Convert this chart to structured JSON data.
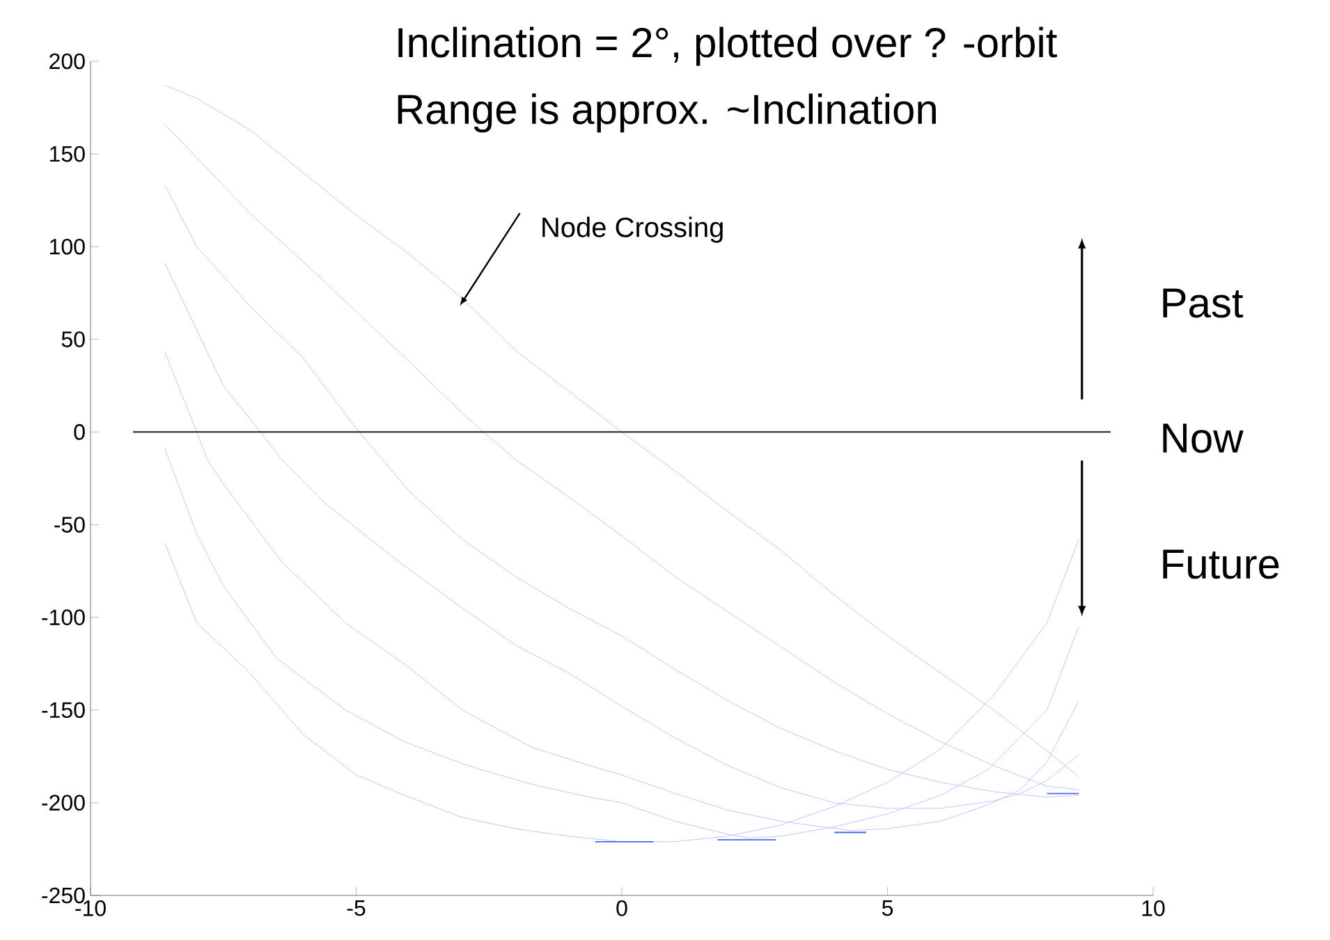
{
  "chart_data": {
    "type": "line",
    "title": "Inclination = 2°, plotted over ? -orbit",
    "subtitle": "Range is approx. ~Inclination",
    "xlim": [
      -10,
      10
    ],
    "xticks": [
      -10,
      -5,
      0,
      5,
      10
    ],
    "ylim": [
      -250,
      200
    ],
    "yticks": [
      -250,
      -200,
      -150,
      -100,
      -50,
      0,
      50,
      100,
      150,
      200
    ],
    "grid": false,
    "marker": "none",
    "line_style": "solid",
    "series": [
      {
        "color": "#b4c0ff",
        "x": [
          -8.6,
          -8,
          -7,
          -6,
          -5,
          -4,
          -3,
          -2,
          -1,
          0,
          1,
          2,
          3,
          4,
          5,
          6,
          7,
          8,
          8.6
        ],
        "values": [
          187,
          180,
          163,
          140,
          117,
          96,
          72,
          44,
          22,
          0,
          -21,
          -43,
          -64,
          -88,
          -110,
          -130,
          -150,
          -172,
          -186
        ]
      },
      {
        "color": "#b4c0ff",
        "x": [
          -8.6,
          -8,
          -7,
          -6,
          -5,
          -4,
          -3,
          -2,
          -1,
          0,
          1,
          2,
          3,
          4,
          5,
          6,
          7,
          8,
          8.6
        ],
        "values": [
          166,
          148,
          118,
          92,
          65,
          38,
          10,
          -15,
          -35,
          -56,
          -78,
          -97,
          -116,
          -135,
          -152,
          -167,
          -180,
          -191,
          -193
        ]
      },
      {
        "color": "#b4c0ff",
        "x": [
          -8.6,
          -8,
          -7,
          -6,
          -5,
          -4,
          -3,
          -2,
          -1,
          0,
          1,
          2,
          3,
          4,
          5,
          6,
          7,
          8,
          8.6
        ],
        "values": [
          133,
          100,
          68,
          40,
          2,
          -32,
          -58,
          -78,
          -95,
          -110,
          -128,
          -145,
          -160,
          -172,
          -182,
          -189,
          -194,
          -197,
          -196
        ]
      },
      {
        "color": "#b4c0ff",
        "x": [
          -8.6,
          -8,
          -7.5,
          -6.8,
          -6.4,
          -5.6,
          -4.2,
          -3,
          -2,
          -1,
          0,
          1,
          2,
          3,
          4,
          5,
          6,
          7,
          7.5,
          8,
          8.6
        ],
        "values": [
          91,
          55,
          25,
          0,
          -15,
          -38,
          -70,
          -95,
          -115,
          -130,
          -148,
          -165,
          -180,
          -192,
          -200,
          -203,
          -203,
          -199,
          -195,
          -188,
          -174
        ]
      },
      {
        "color": "#b4c0ff",
        "x": [
          -8.6,
          -8,
          -7.8,
          -7.5,
          -6.4,
          -5.2,
          -4.1,
          -3,
          -1.7,
          -0.6,
          0,
          1,
          2,
          3,
          4.3,
          5,
          6,
          6.9,
          7.5,
          8,
          8.6
        ],
        "values": [
          43,
          0,
          -15,
          -28,
          -70,
          -103,
          -125,
          -150,
          -170,
          -180,
          -185,
          -195,
          -204,
          -210,
          -215,
          -214,
          -210,
          -201,
          -193,
          -178,
          -145
        ]
      },
      {
        "color": "#b4c0ff",
        "x": [
          -8.6,
          -8,
          -7.5,
          -6.5,
          -5.2,
          -4.1,
          -2.9,
          -1.7,
          -0.6,
          0,
          1,
          2,
          2.4,
          3,
          4,
          5,
          6,
          6.9,
          8,
          8.6
        ],
        "values": [
          -9,
          -55,
          -83,
          -122,
          -150,
          -167,
          -180,
          -190,
          -197,
          -200,
          -210,
          -217,
          -219,
          -218,
          -213,
          -206,
          -196,
          -182,
          -150,
          -105
        ]
      },
      {
        "color": "#b4c0ff",
        "x": [
          -8.6,
          -8,
          -7,
          -6,
          -5,
          -4,
          -3,
          -2,
          -1,
          0,
          1,
          2,
          3,
          4,
          5,
          6,
          7,
          8,
          8.6
        ],
        "values": [
          -60,
          -103,
          -130,
          -163,
          -185,
          -197,
          -208,
          -214,
          -218,
          -221,
          -221,
          -218,
          -212,
          -202,
          -189,
          -171,
          -142,
          -103,
          -58
        ]
      },
      {
        "color": "#4a66e8",
        "x": [
          -0.5,
          0.6
        ],
        "values": [
          -221,
          -221
        ]
      },
      {
        "color": "#4a66e8",
        "x": [
          1.8,
          2.9
        ],
        "values": [
          -220,
          -220
        ]
      },
      {
        "color": "#4a66e8",
        "x": [
          4.0,
          4.6
        ],
        "values": [
          -216,
          -216
        ]
      },
      {
        "color": "#4a66e8",
        "x": [
          8.0,
          8.6
        ],
        "values": [
          -195,
          -195
        ]
      },
      {
        "color": "#000000",
        "x": [
          -9.2,
          9.2
        ],
        "values": [
          0,
          0
        ]
      }
    ],
    "annotations": [
      "Past",
      "Now",
      "Future",
      {
        "text": "Node Crossing",
        "x": -3.05,
        "y": 68
      }
    ]
  }
}
